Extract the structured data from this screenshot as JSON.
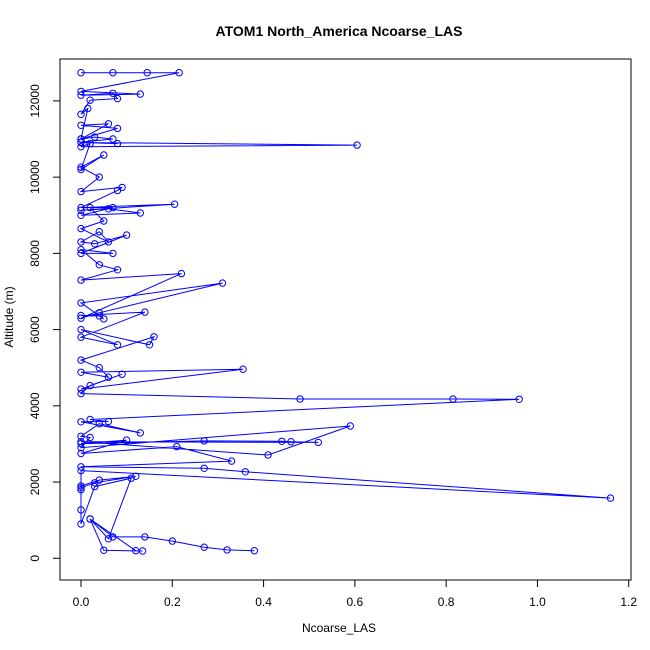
{
  "chart_data": {
    "type": "scatter",
    "title": "ATOM1 North_America Ncoarse_LAS",
    "xlabel": "Ncoarse_LAS",
    "ylabel": "Altitude (m)",
    "xlim": [
      -0.046,
      1.205
    ],
    "ylim": [
      -570,
      13100
    ],
    "xticks": [
      0,
      0.2,
      0.4,
      0.6,
      0.8,
      1.0,
      1.2
    ],
    "xtick_labels": [
      "0.0",
      "0.2",
      "0.4",
      "0.6",
      "0.8",
      "1.0",
      "1.2"
    ],
    "yticks": [
      0,
      2000,
      4000,
      6000,
      8000,
      10000,
      12000
    ],
    "ytick_labels": [
      "0",
      "2000",
      "4000",
      "6000",
      "8000",
      "10000",
      "12000"
    ],
    "series": [
      {
        "color": "#0000ff",
        "mode": "lines+markers",
        "x": [
          0.38,
          0.32,
          0.27,
          0.2,
          0.14,
          0.07,
          0.02,
          0.12,
          0.135,
          0.05,
          0.02,
          0.06,
          0.11,
          0.03,
          0.0,
          0.0,
          0.0,
          0.0,
          0.04,
          0.12,
          0.03,
          0.0,
          0.0,
          1.16,
          0.36,
          0.27,
          0.0,
          0.33,
          0.21,
          0.0,
          0.1,
          0.0,
          0.27,
          0.44,
          0.46,
          0.52,
          0.0,
          0.41,
          0.59,
          0.0,
          0.02,
          0.0,
          0.04,
          0.13,
          0.0,
          0.06,
          0.02,
          0.96,
          0.815,
          0.48,
          0.0,
          0.02,
          0.09,
          0.0,
          0.355,
          0.0,
          0.06,
          0.04,
          0.0,
          0.16,
          0.15,
          0.0,
          0.08,
          0.0,
          0.14,
          0.0,
          0.04,
          0.05,
          0.0,
          0.31,
          0.04,
          0.0,
          0.22,
          0.0,
          0.08,
          0.04,
          0.0,
          0.07,
          0.0,
          0.1,
          0.03,
          0.0,
          0.04,
          0.06,
          0.0,
          0.05,
          0.02,
          0.07,
          0.0,
          0.13,
          0.06,
          0.0,
          0.205,
          0.0,
          0.08,
          0.09,
          0.0,
          0.04,
          0.0,
          0.05,
          0.0,
          0.02,
          0.0,
          0.605,
          0.0,
          0.08,
          0.0,
          0.07,
          0.03,
          0.0,
          0.08,
          0.0,
          0.06,
          0.0,
          0.015,
          0.0,
          0.02,
          0.08,
          0.07,
          0.0,
          0.13,
          0.0,
          0.215,
          0.145,
          0.07,
          0.0
        ],
        "y": [
          200,
          220,
          290,
          450,
          560,
          560,
          1030,
          200,
          190,
          210,
          1030,
          510,
          2100,
          1880,
          900,
          1270,
          1800,
          1900,
          2050,
          2150,
          1980,
          1850,
          2300,
          1580,
          2270,
          2360,
          2400,
          2550,
          2930,
          2750,
          3100,
          3010,
          3080,
          3070,
          3060,
          3040,
          3060,
          2710,
          3470,
          2900,
          3170,
          3200,
          3530,
          3290,
          3580,
          3590,
          3640,
          4170,
          4180,
          4180,
          4320,
          4530,
          4830,
          4440,
          4960,
          4880,
          4750,
          5000,
          5200,
          5810,
          5600,
          6000,
          5600,
          5800,
          6460,
          6370,
          6360,
          6280,
          6700,
          7220,
          6440,
          6300,
          7470,
          7300,
          7570,
          7700,
          8100,
          8000,
          8000,
          8480,
          8250,
          8300,
          8570,
          8300,
          8650,
          8850,
          9200,
          9200,
          9000,
          9060,
          9170,
          9130,
          9290,
          9200,
          9650,
          9730,
          9620,
          10000,
          10260,
          10580,
          10200,
          10880,
          10800,
          10840,
          10910,
          10880,
          10920,
          11000,
          11050,
          11000,
          11280,
          11360,
          11400,
          11000,
          11800,
          11650,
          12020,
          12060,
          12200,
          12150,
          12180,
          12250,
          12740,
          12740,
          12740,
          12740
        ]
      }
    ]
  }
}
